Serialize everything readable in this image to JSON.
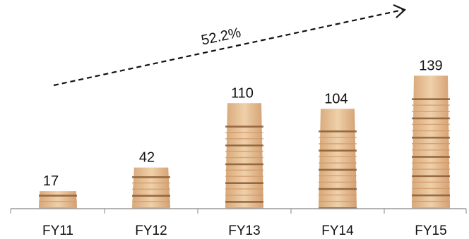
{
  "chart_data": {
    "type": "bar",
    "categories": [
      "FY11",
      "FY12",
      "FY13",
      "FY14",
      "FY15"
    ],
    "values": [
      17,
      42,
      110,
      104,
      139
    ],
    "data_labels": [
      "17",
      "42",
      "110",
      "104",
      "139"
    ],
    "title": "",
    "xlabel": "",
    "ylabel": "",
    "ylim": [
      0,
      140
    ],
    "grid": false,
    "legend": "none",
    "annotation": {
      "text": "52.2%",
      "kind": "dashed growth arrow",
      "from": "FY11",
      "to": "FY15"
    },
    "bar_style": "stacked plywood sheets",
    "colors": {
      "wood_light": "#e8c39a",
      "wood_mid": "#d19a6a",
      "wood_dark": "#8a5a34",
      "axis": "#9a9a9a",
      "arrow": "#111111"
    }
  }
}
